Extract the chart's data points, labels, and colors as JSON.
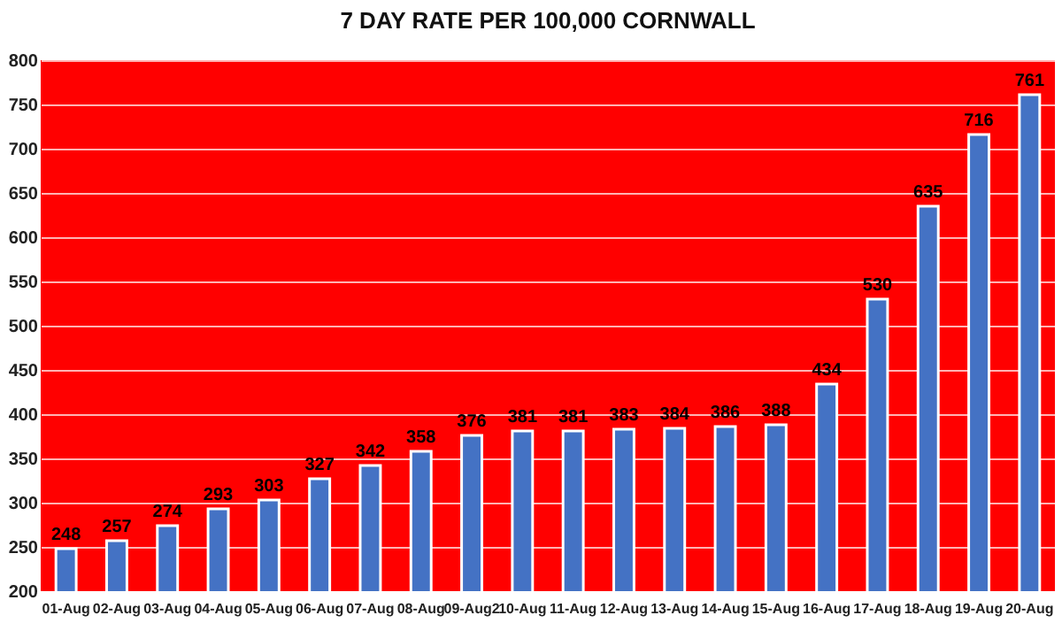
{
  "chart_data": {
    "type": "bar",
    "title": "7 DAY RATE PER 100,000 CORNWALL",
    "categories": [
      "01-Aug",
      "02-Aug",
      "03-Aug",
      "04-Aug",
      "05-Aug",
      "06-Aug",
      "07-Aug",
      "08-Aug",
      "09-Aug2",
      "10-Aug",
      "11-Aug",
      "12-Aug",
      "13-Aug",
      "14-Aug",
      "15-Aug",
      "16-Aug",
      "17-Aug",
      "18-Aug",
      "19-Aug",
      "20-Aug"
    ],
    "values": [
      248,
      257,
      274,
      293,
      303,
      327,
      342,
      358,
      376,
      381,
      381,
      383,
      384,
      386,
      388,
      434,
      530,
      635,
      716,
      761
    ],
    "color": "#4472c4",
    "ylim": [
      200,
      800
    ],
    "yticks": [
      200,
      250,
      300,
      350,
      400,
      450,
      500,
      550,
      600,
      650,
      700,
      750,
      800
    ],
    "grid": "y",
    "data_labels": true
  }
}
